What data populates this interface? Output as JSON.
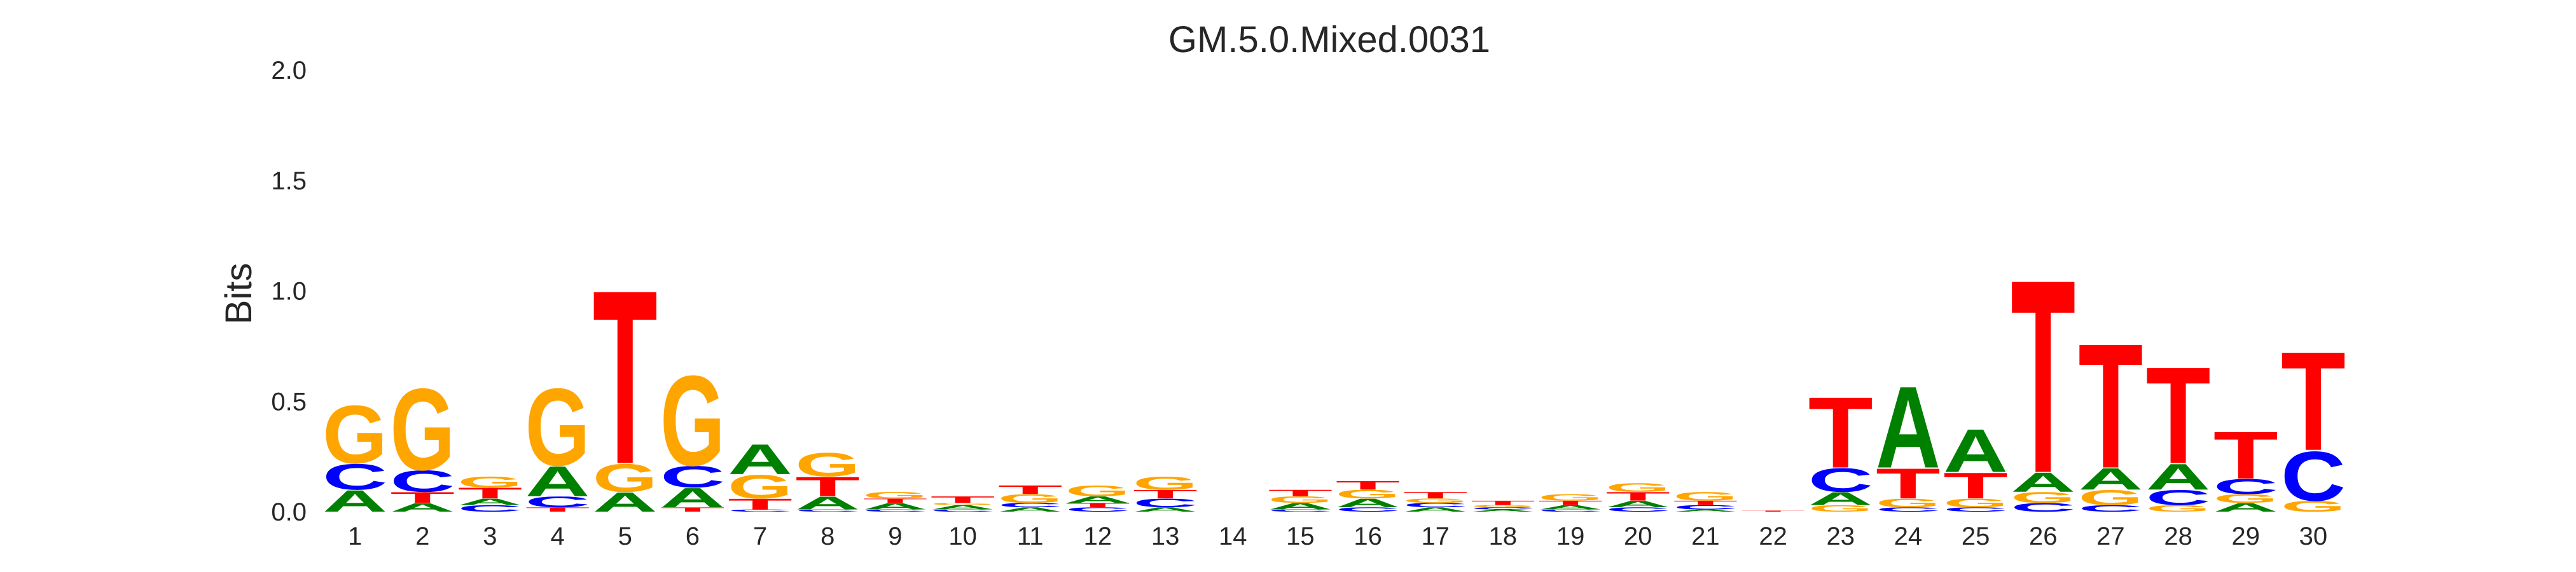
{
  "chart_data": {
    "type": "sequence-logo",
    "title": "GM.5.0.Mixed.0031",
    "ylabel": "Bits",
    "xlabel": "",
    "ylim": [
      0,
      2
    ],
    "yticks": [
      "0.0",
      "0.5",
      "1.0",
      "1.5",
      "2.0"
    ],
    "grid": false,
    "colors": {
      "A": "#008000",
      "C": "#0000ff",
      "G": "#ffa500",
      "T": "#ff0000"
    },
    "positions": [
      {
        "label": "1",
        "stack": [
          {
            "b": "A",
            "h": 0.1
          },
          {
            "b": "C",
            "h": 0.12
          },
          {
            "b": "G",
            "h": 0.27
          }
        ]
      },
      {
        "label": "2",
        "stack": [
          {
            "b": "A",
            "h": 0.04
          },
          {
            "b": "T",
            "h": 0.05
          },
          {
            "b": "C",
            "h": 0.1
          },
          {
            "b": "G",
            "h": 0.38
          }
        ]
      },
      {
        "label": "3",
        "stack": [
          {
            "b": "C",
            "h": 0.03
          },
          {
            "b": "A",
            "h": 0.03
          },
          {
            "b": "T",
            "h": 0.05
          },
          {
            "b": "G",
            "h": 0.05
          }
        ]
      },
      {
        "label": "4",
        "stack": [
          {
            "b": "T",
            "h": 0.02
          },
          {
            "b": "C",
            "h": 0.05
          },
          {
            "b": "A",
            "h": 0.14
          },
          {
            "b": "G",
            "h": 0.36
          }
        ]
      },
      {
        "label": "5",
        "stack": [
          {
            "b": "A",
            "h": 0.09
          },
          {
            "b": "G",
            "h": 0.13
          },
          {
            "b": "T",
            "h": 0.81
          }
        ]
      },
      {
        "label": "6",
        "stack": [
          {
            "b": "T",
            "h": 0.02
          },
          {
            "b": "A",
            "h": 0.09
          },
          {
            "b": "C",
            "h": 0.1
          },
          {
            "b": "G",
            "h": 0.42
          }
        ]
      },
      {
        "label": "7",
        "stack": [
          {
            "b": "C",
            "h": 0.01
          },
          {
            "b": "T",
            "h": 0.05
          },
          {
            "b": "G",
            "h": 0.11
          },
          {
            "b": "A",
            "h": 0.14
          }
        ]
      },
      {
        "label": "8",
        "stack": [
          {
            "b": "C",
            "h": 0.01
          },
          {
            "b": "A",
            "h": 0.06
          },
          {
            "b": "T",
            "h": 0.09
          },
          {
            "b": "G",
            "h": 0.11
          }
        ]
      },
      {
        "label": "9",
        "stack": [
          {
            "b": "C",
            "h": 0.01
          },
          {
            "b": "A",
            "h": 0.03
          },
          {
            "b": "T",
            "h": 0.02
          },
          {
            "b": "G",
            "h": 0.03
          }
        ]
      },
      {
        "label": "10",
        "stack": [
          {
            "b": "C",
            "h": 0.01
          },
          {
            "b": "A",
            "h": 0.02
          },
          {
            "b": "G",
            "h": 0.01
          },
          {
            "b": "T",
            "h": 0.03
          }
        ]
      },
      {
        "label": "11",
        "stack": [
          {
            "b": "A",
            "h": 0.02
          },
          {
            "b": "C",
            "h": 0.02
          },
          {
            "b": "G",
            "h": 0.04
          },
          {
            "b": "T",
            "h": 0.04
          }
        ]
      },
      {
        "label": "12",
        "stack": [
          {
            "b": "C",
            "h": 0.02
          },
          {
            "b": "T",
            "h": 0.02
          },
          {
            "b": "A",
            "h": 0.03
          },
          {
            "b": "G",
            "h": 0.05
          }
        ]
      },
      {
        "label": "13",
        "stack": [
          {
            "b": "A",
            "h": 0.02
          },
          {
            "b": "C",
            "h": 0.04
          },
          {
            "b": "T",
            "h": 0.04
          },
          {
            "b": "G",
            "h": 0.06
          }
        ]
      },
      {
        "label": "14",
        "stack": []
      },
      {
        "label": "15",
        "stack": [
          {
            "b": "C",
            "h": 0.01
          },
          {
            "b": "A",
            "h": 0.03
          },
          {
            "b": "G",
            "h": 0.03
          },
          {
            "b": "T",
            "h": 0.03
          }
        ]
      },
      {
        "label": "16",
        "stack": [
          {
            "b": "C",
            "h": 0.02
          },
          {
            "b": "A",
            "h": 0.04
          },
          {
            "b": "G",
            "h": 0.04
          },
          {
            "b": "T",
            "h": 0.04
          }
        ]
      },
      {
        "label": "17",
        "stack": [
          {
            "b": "A",
            "h": 0.02
          },
          {
            "b": "C",
            "h": 0.02
          },
          {
            "b": "G",
            "h": 0.02
          },
          {
            "b": "T",
            "h": 0.03
          }
        ]
      },
      {
        "label": "18",
        "stack": [
          {
            "b": "A",
            "h": 0.01
          },
          {
            "b": "C",
            "h": 0.01
          },
          {
            "b": "G",
            "h": 0.01
          },
          {
            "b": "T",
            "h": 0.02
          }
        ]
      },
      {
        "label": "19",
        "stack": [
          {
            "b": "C",
            "h": 0.01
          },
          {
            "b": "A",
            "h": 0.02
          },
          {
            "b": "T",
            "h": 0.02
          },
          {
            "b": "G",
            "h": 0.03
          }
        ]
      },
      {
        "label": "20",
        "stack": [
          {
            "b": "C",
            "h": 0.02
          },
          {
            "b": "A",
            "h": 0.03
          },
          {
            "b": "T",
            "h": 0.04
          },
          {
            "b": "G",
            "h": 0.04
          }
        ]
      },
      {
        "label": "21",
        "stack": [
          {
            "b": "A",
            "h": 0.01
          },
          {
            "b": "C",
            "h": 0.02
          },
          {
            "b": "T",
            "h": 0.02
          },
          {
            "b": "G",
            "h": 0.04
          }
        ]
      },
      {
        "label": "22",
        "stack": [
          {
            "b": "T",
            "h": 0.005
          }
        ]
      },
      {
        "label": "23",
        "stack": [
          {
            "b": "G",
            "h": 0.03
          },
          {
            "b": "A",
            "h": 0.06
          },
          {
            "b": "C",
            "h": 0.11
          },
          {
            "b": "T",
            "h": 0.33
          }
        ]
      },
      {
        "label": "24",
        "stack": [
          {
            "b": "C",
            "h": 0.02
          },
          {
            "b": "G",
            "h": 0.04
          },
          {
            "b": "T",
            "h": 0.14
          },
          {
            "b": "A",
            "h": 0.38
          }
        ]
      },
      {
        "label": "25",
        "stack": [
          {
            "b": "C",
            "h": 0.02
          },
          {
            "b": "G",
            "h": 0.04
          },
          {
            "b": "T",
            "h": 0.12
          },
          {
            "b": "A",
            "h": 0.2
          }
        ]
      },
      {
        "label": "26",
        "stack": [
          {
            "b": "C",
            "h": 0.04
          },
          {
            "b": "G",
            "h": 0.05
          },
          {
            "b": "A",
            "h": 0.09
          },
          {
            "b": "T",
            "h": 0.9
          }
        ]
      },
      {
        "label": "27",
        "stack": [
          {
            "b": "C",
            "h": 0.03
          },
          {
            "b": "G",
            "h": 0.07
          },
          {
            "b": "A",
            "h": 0.1
          },
          {
            "b": "T",
            "h": 0.58
          }
        ]
      },
      {
        "label": "28",
        "stack": [
          {
            "b": "G",
            "h": 0.03
          },
          {
            "b": "C",
            "h": 0.07
          },
          {
            "b": "A",
            "h": 0.12
          },
          {
            "b": "T",
            "h": 0.45
          }
        ]
      },
      {
        "label": "29",
        "stack": [
          {
            "b": "A",
            "h": 0.04
          },
          {
            "b": "G",
            "h": 0.04
          },
          {
            "b": "C",
            "h": 0.07
          },
          {
            "b": "T",
            "h": 0.22
          }
        ]
      },
      {
        "label": "30",
        "stack": [
          {
            "b": "G",
            "h": 0.05
          },
          {
            "b": "C",
            "h": 0.23
          },
          {
            "b": "T",
            "h": 0.46
          }
        ]
      }
    ]
  }
}
